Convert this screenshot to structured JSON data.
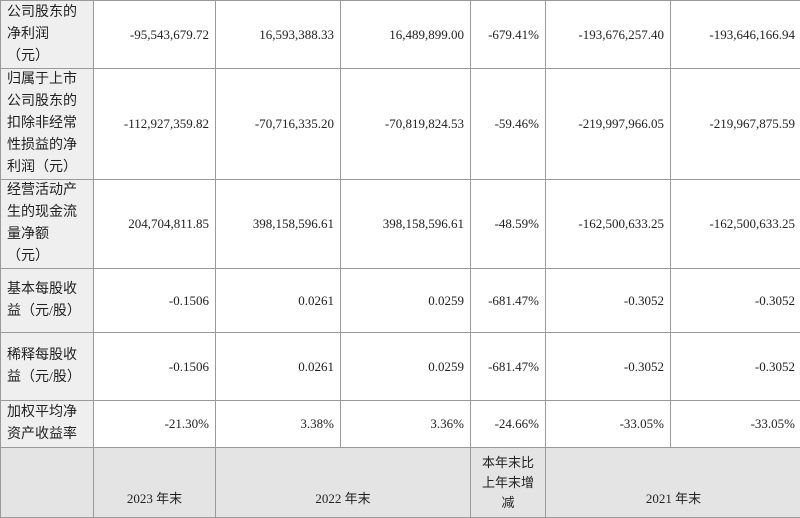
{
  "table": {
    "rows": [
      [
        "公司股东的净利润（元）",
        "-95,543,679.72",
        "16,593,388.33",
        "16,489,899.00",
        "-679.41%",
        "-193,676,257.40",
        "-193,646,166.94"
      ],
      [
        "归属于上市公司股东的扣除非经常性损益的净利润（元）",
        "-112,927,359.82",
        "-70,716,335.20",
        "-70,819,824.53",
        "-59.46%",
        "-219,997,966.05",
        "-219,967,875.59"
      ],
      [
        "经营活动产生的现金流量净额（元）",
        "204,704,811.85",
        "398,158,596.61",
        "398,158,596.61",
        "-48.59%",
        "-162,500,633.25",
        "-162,500,633.25"
      ],
      [
        "基本每股收益（元/股）",
        "-0.1506",
        "0.0261",
        "0.0259",
        "-681.47%",
        "-0.3052",
        "-0.3052"
      ],
      [
        "稀释每股收益（元/股）",
        "-0.1506",
        "0.0261",
        "0.0259",
        "-681.47%",
        "-0.3052",
        "-0.3052"
      ],
      [
        "加权平均净资产收益率",
        "-21.30%",
        "3.38%",
        "3.36%",
        "-24.66%",
        "-33.05%",
        "-33.05%"
      ]
    ],
    "header": [
      "2023 年末",
      "2022 年末",
      "本年末比上年末增减",
      "2021 年末"
    ]
  }
}
